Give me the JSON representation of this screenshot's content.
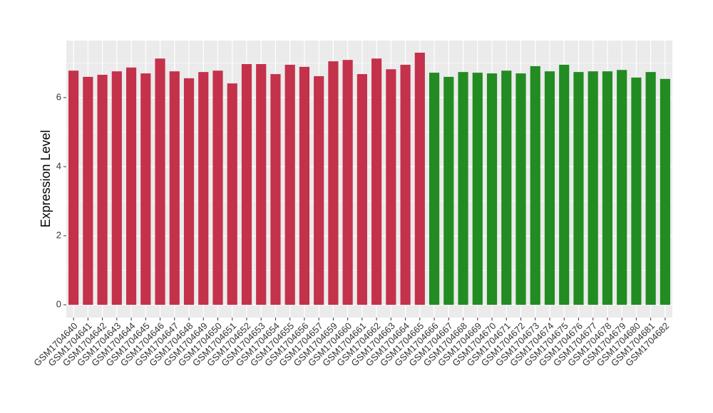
{
  "chart_data": {
    "type": "bar",
    "y_label": "Expression Level",
    "categories": [
      "GSM1704640",
      "GSM1704641",
      "GSM1704642",
      "GSM1704643",
      "GSM1704644",
      "GSM1704645",
      "GSM1704646",
      "GSM1704647",
      "GSM1704648",
      "GSM1704649",
      "GSM1704650",
      "GSM1704651",
      "GSM1704652",
      "GSM1704653",
      "GSM1704654",
      "GSM1704655",
      "GSM1704656",
      "GSM1704657",
      "GSM1704659",
      "GSM1704660",
      "GSM1704661",
      "GSM1704662",
      "GSM1704663",
      "GSM1704664",
      "GSM1704665",
      "GSM1704666",
      "GSM1704667",
      "GSM1704668",
      "GSM1704669",
      "GSM1704670",
      "GSM1704671",
      "GSM1704672",
      "GSM1704673",
      "GSM1704674",
      "GSM1704675",
      "GSM1704676",
      "GSM1704677",
      "GSM1704678",
      "GSM1704679",
      "GSM1704680",
      "GSM1704681",
      "GSM1704682"
    ],
    "values": [
      6.78,
      6.6,
      6.66,
      6.76,
      6.87,
      6.7,
      7.13,
      6.76,
      6.56,
      6.74,
      6.78,
      6.41,
      6.97,
      6.97,
      6.68,
      6.95,
      6.89,
      6.62,
      7.05,
      7.09,
      6.68,
      7.13,
      6.82,
      6.95,
      7.3,
      6.72,
      6.6,
      6.74,
      6.72,
      6.7,
      6.78,
      6.7,
      6.91,
      6.76,
      6.95,
      6.74,
      6.76,
      6.76,
      6.8,
      6.58,
      6.74,
      6.54
    ],
    "colors": [
      "#c4314b",
      "#c4314b",
      "#c4314b",
      "#c4314b",
      "#c4314b",
      "#c4314b",
      "#c4314b",
      "#c4314b",
      "#c4314b",
      "#c4314b",
      "#c4314b",
      "#c4314b",
      "#c4314b",
      "#c4314b",
      "#c4314b",
      "#c4314b",
      "#c4314b",
      "#c4314b",
      "#c4314b",
      "#c4314b",
      "#c4314b",
      "#c4314b",
      "#c4314b",
      "#c4314b",
      "#c4314b",
      "#228b22",
      "#228b22",
      "#228b22",
      "#228b22",
      "#228b22",
      "#228b22",
      "#228b22",
      "#228b22",
      "#228b22",
      "#228b22",
      "#228b22",
      "#228b22",
      "#228b22",
      "#228b22",
      "#228b22",
      "#228b22",
      "#228b22"
    ],
    "ylim": [
      -0.37,
      7.65
    ],
    "yticks": [
      0,
      2,
      4,
      6
    ],
    "grid": true
  }
}
